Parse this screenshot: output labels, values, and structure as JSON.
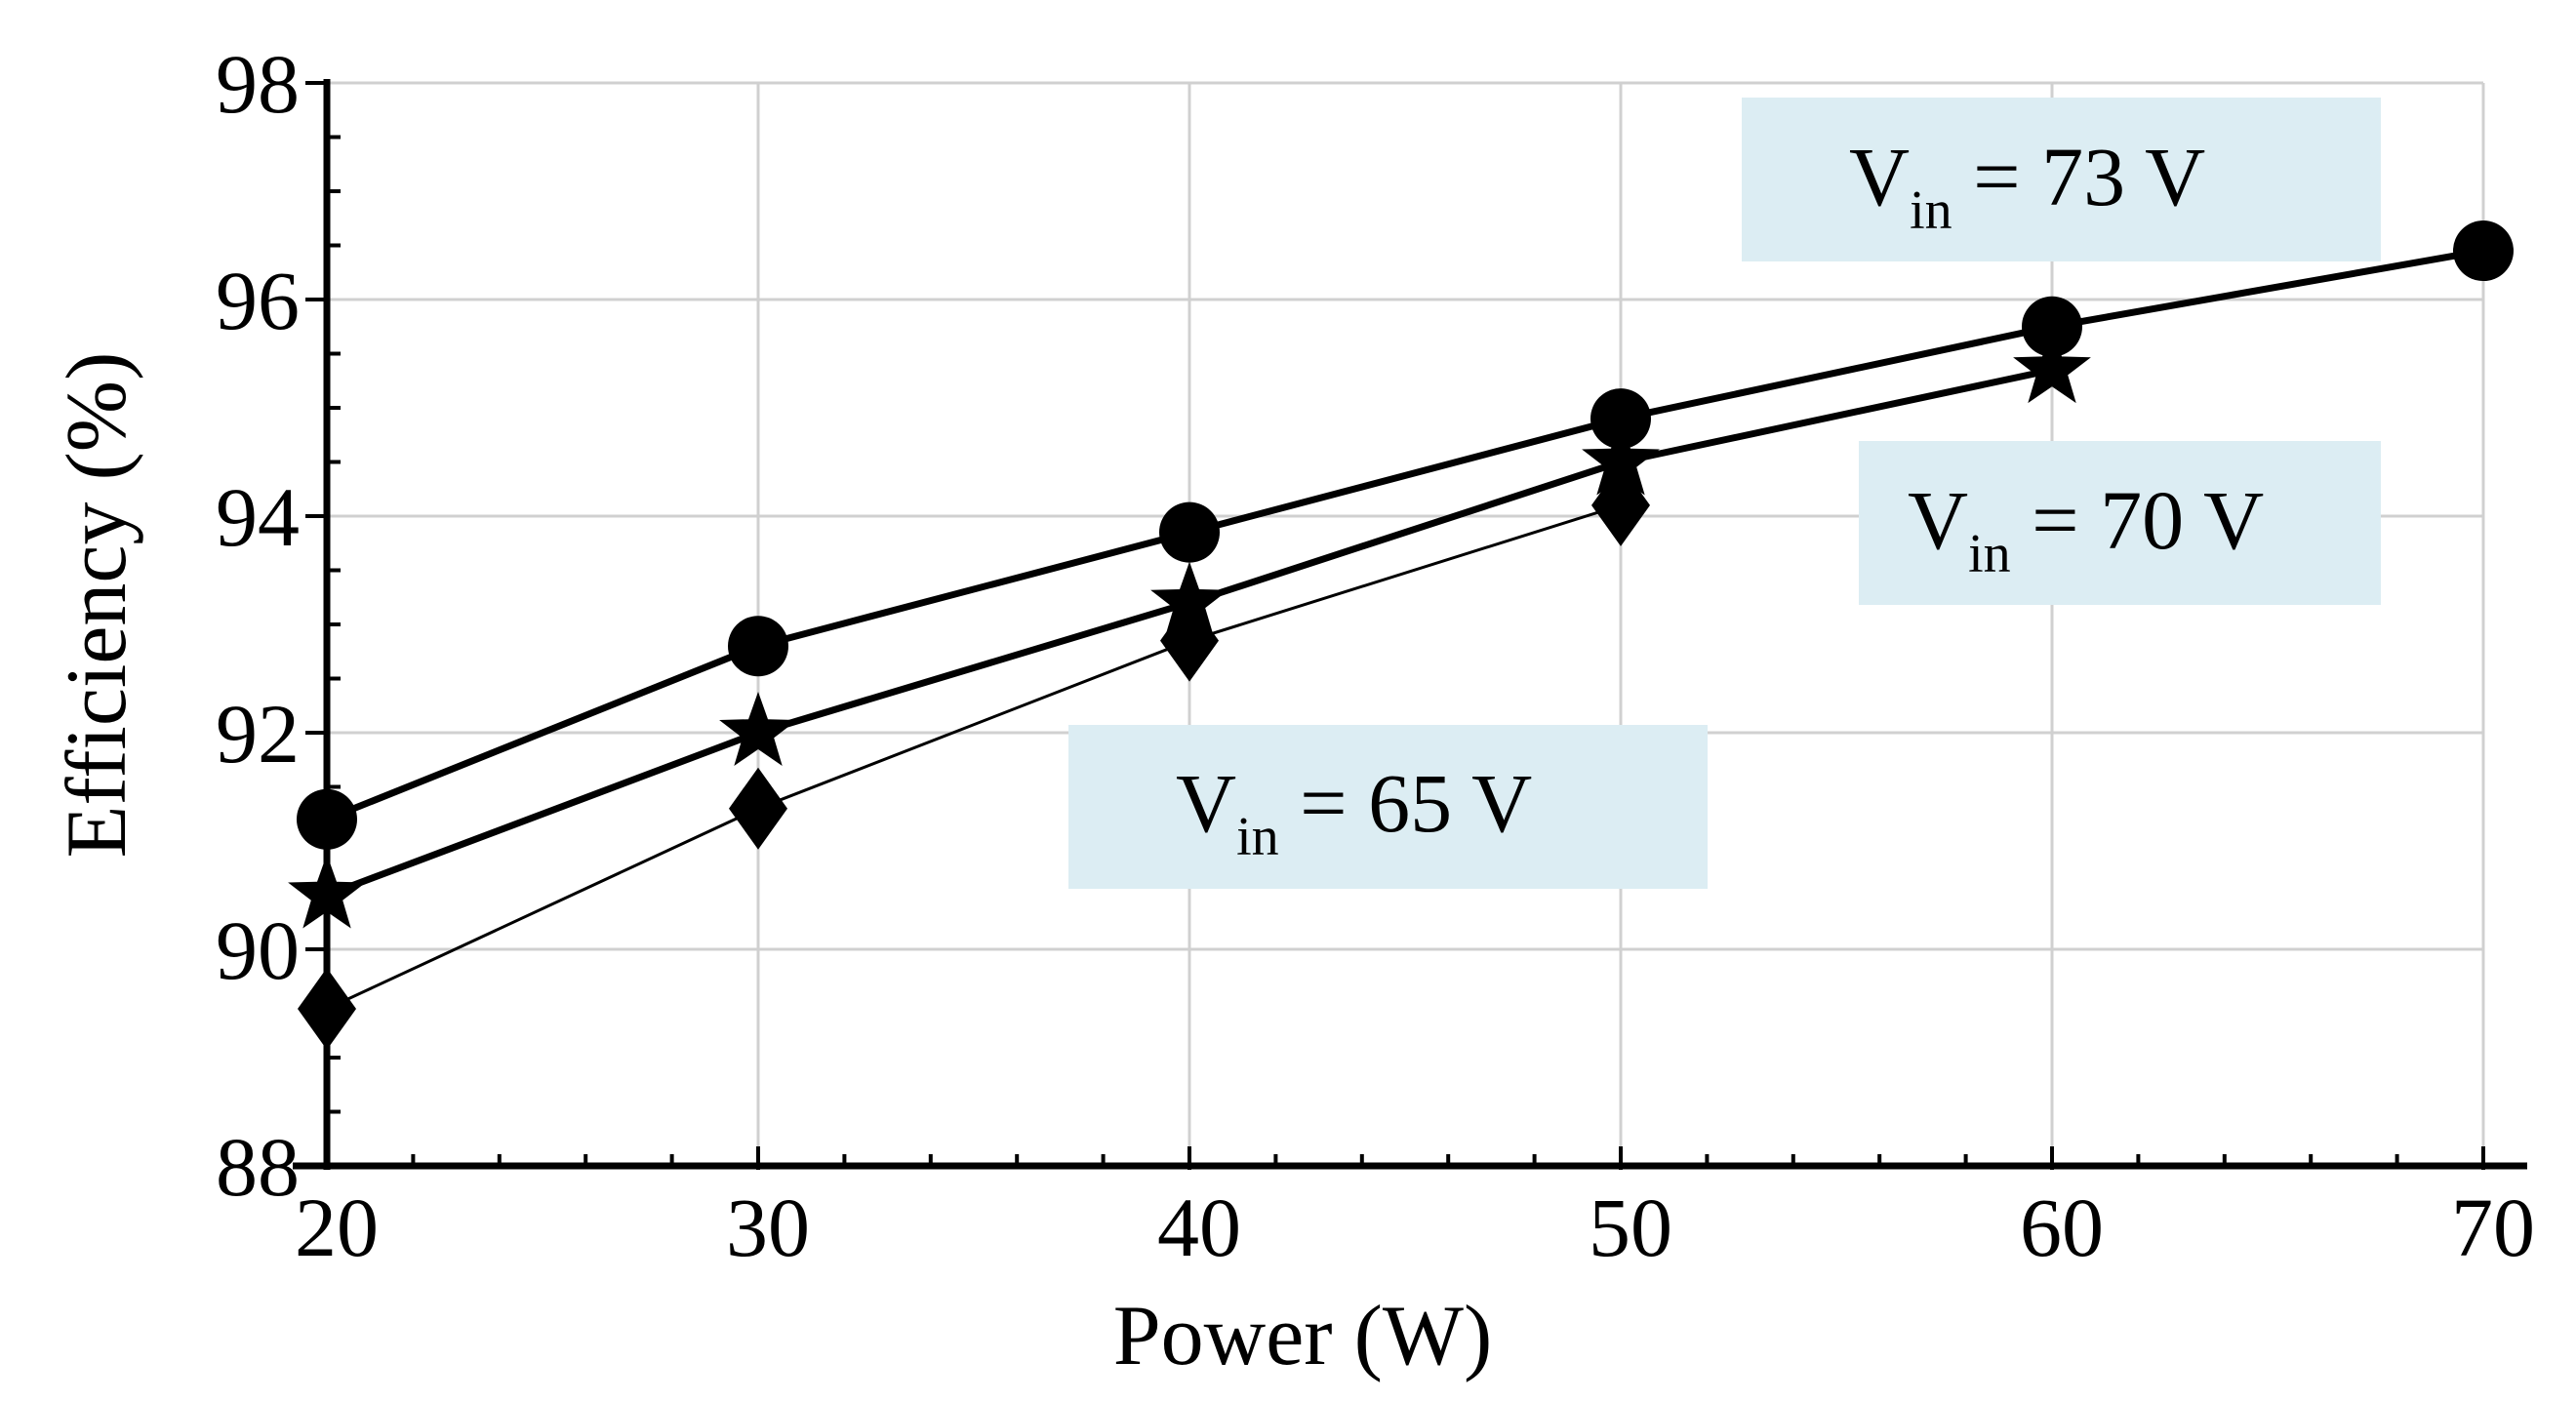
{
  "chart_data": {
    "type": "line",
    "title": "",
    "xlabel": "Power (W)",
    "ylabel": "Efficiency (%)",
    "xlim": [
      20,
      70
    ],
    "ylim": [
      88,
      98
    ],
    "xticks": [
      "20",
      "30",
      "40",
      "50",
      "60",
      "70"
    ],
    "yticks": [
      "88",
      "90",
      "92",
      "94",
      "96",
      "98"
    ],
    "grid": true,
    "series": [
      {
        "name": "Vin = 73 V",
        "marker": "circle",
        "x": [
          20,
          30,
          40,
          50,
          60,
          70
        ],
        "values": [
          91.2,
          92.8,
          93.85,
          94.9,
          95.75,
          96.45
        ]
      },
      {
        "name": "Vin = 70 V",
        "marker": "star",
        "x": [
          20,
          30,
          40,
          50,
          60
        ],
        "values": [
          90.5,
          92.0,
          93.2,
          94.5,
          95.35
        ]
      },
      {
        "name": "Vin = 65 V",
        "marker": "diamond",
        "x": [
          20,
          30,
          40,
          50
        ],
        "values": [
          89.45,
          91.3,
          92.85,
          94.1
        ]
      }
    ],
    "annotations": [
      {
        "main": "V",
        "sub": "in",
        "rest": " = 73 V",
        "series": "Vin = 73 V"
      },
      {
        "main": "V",
        "sub": "in",
        "rest": " = 70 V",
        "series": "Vin = 70 V"
      },
      {
        "main": "V",
        "sub": "in",
        "rest": " = 65 V",
        "series": "Vin = 65 V"
      }
    ],
    "colors": {
      "line": "#000000",
      "label_box": "#dcedf3",
      "grid": "#d0d0d0"
    }
  }
}
